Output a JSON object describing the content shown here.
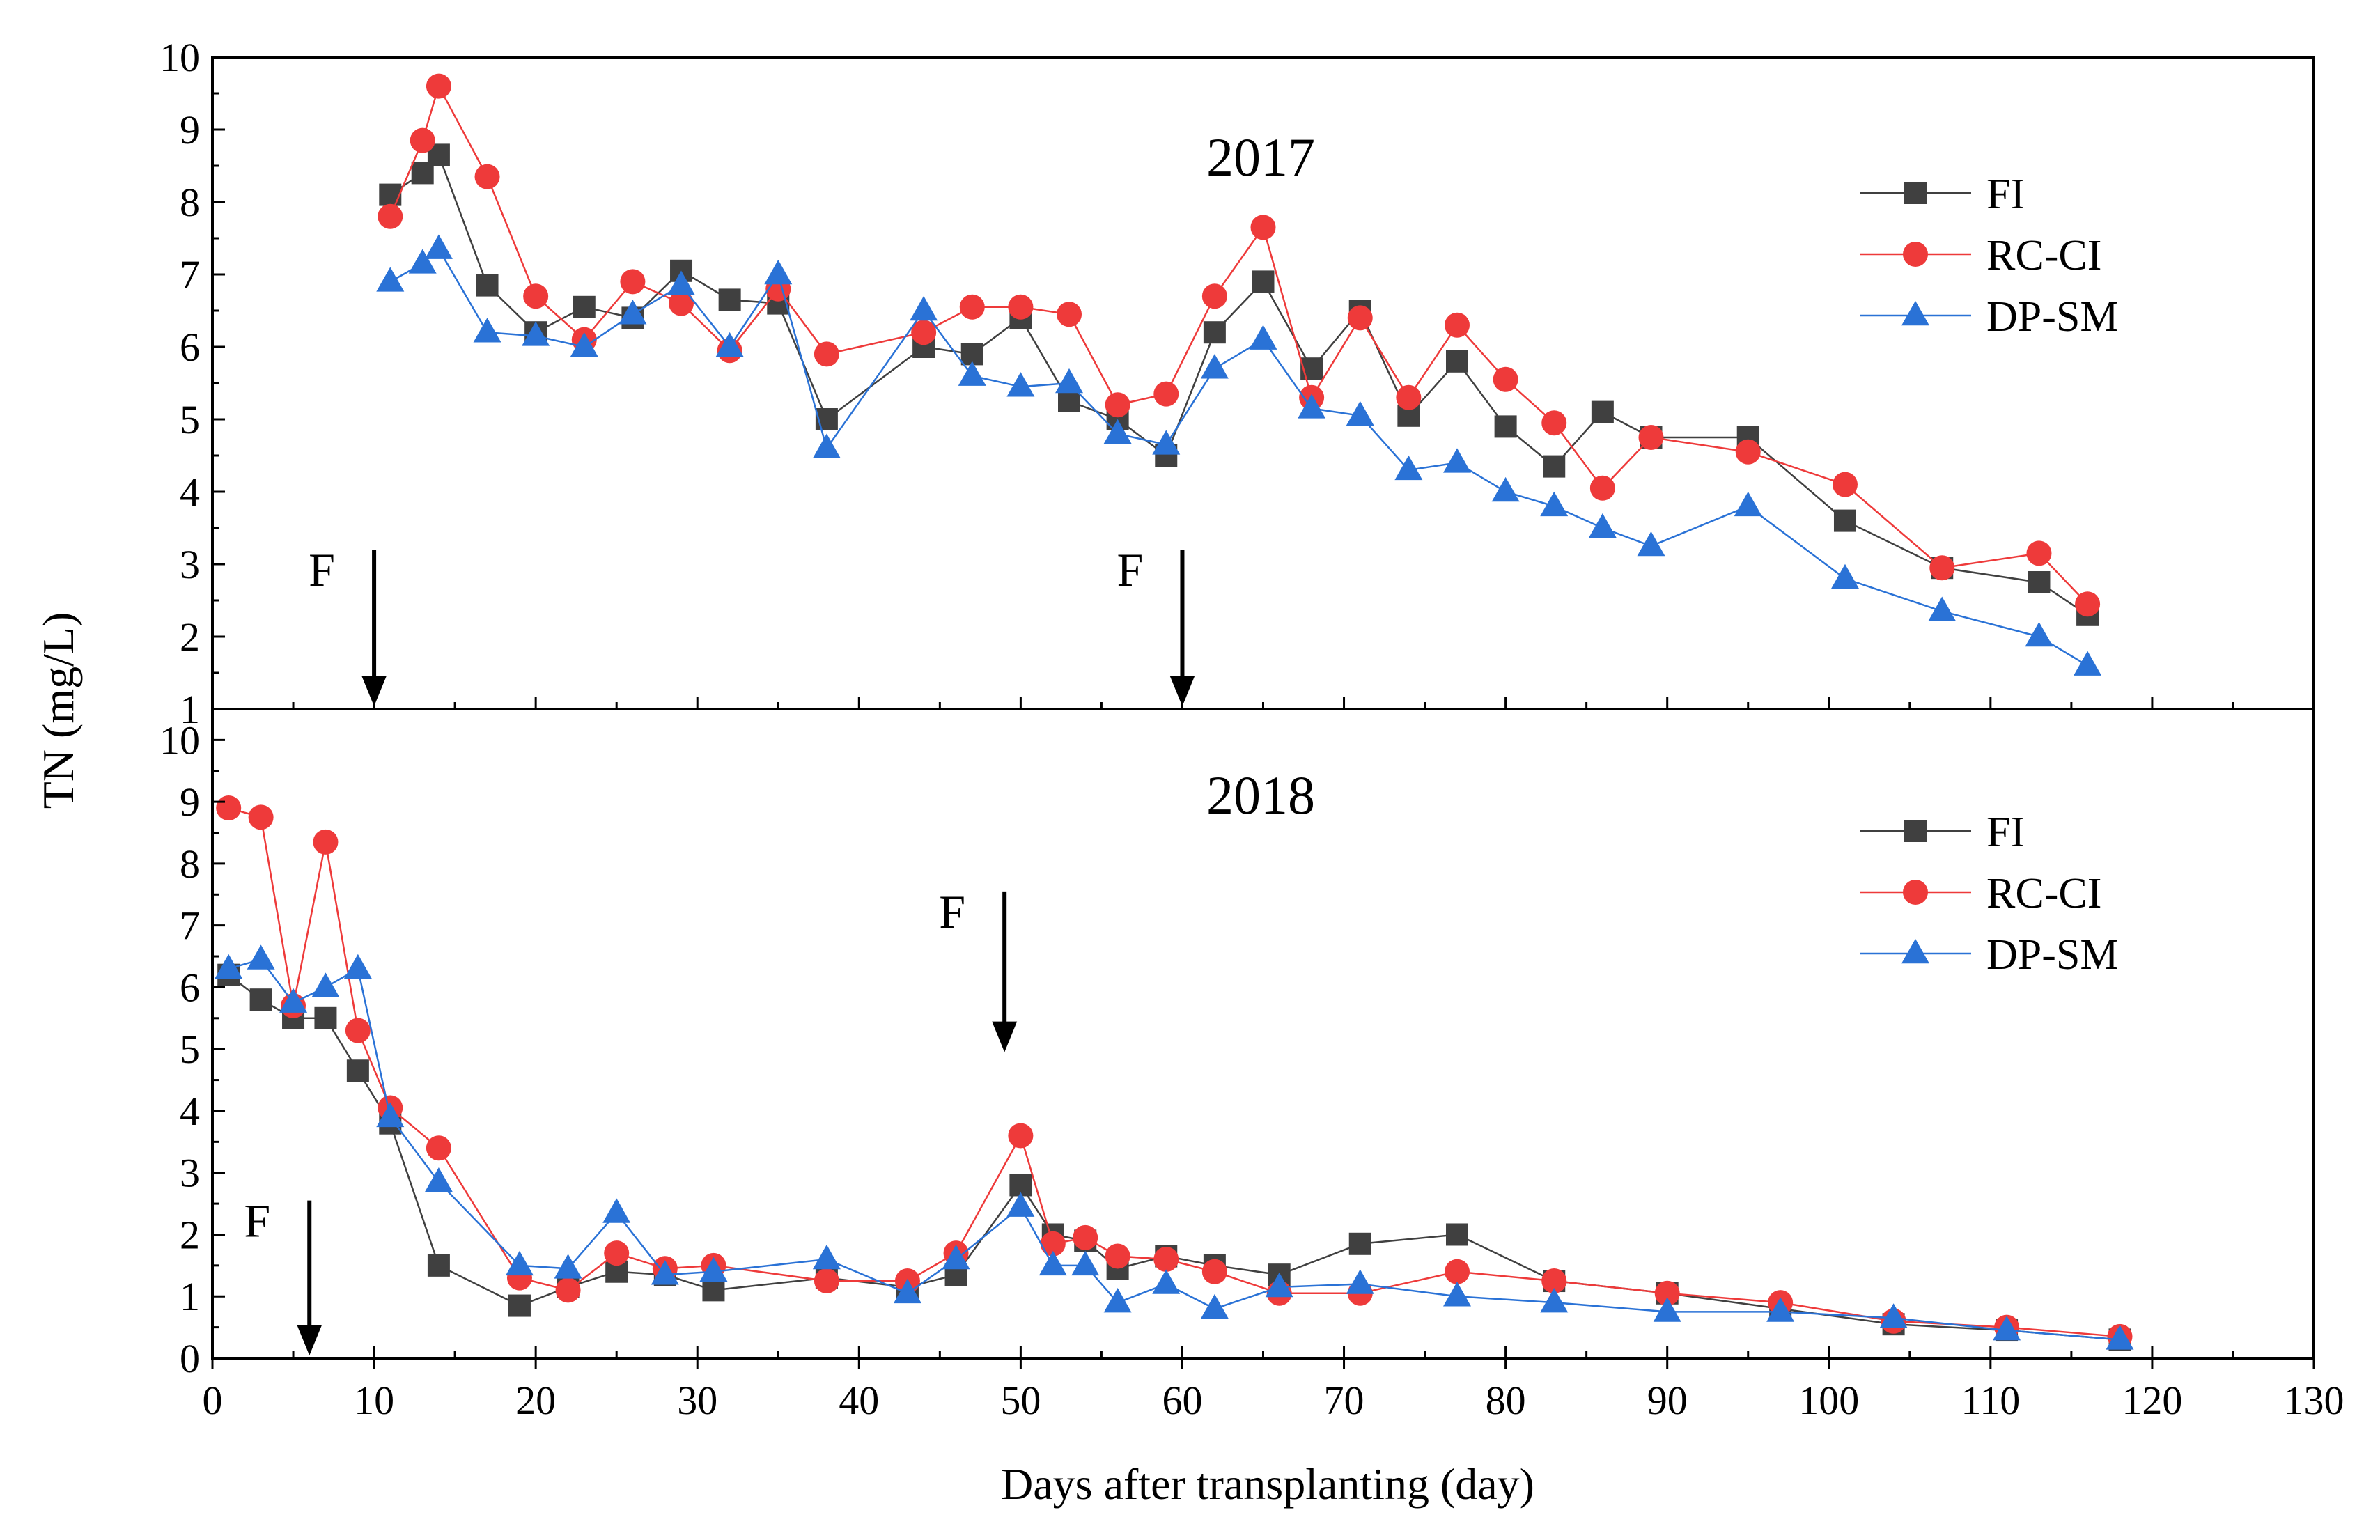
{
  "chart_data": {
    "type": "line",
    "x_axis": {
      "label": "Days after transplanting (day)",
      "range": [
        0,
        130
      ],
      "ticks": [
        0,
        10,
        20,
        30,
        40,
        50,
        60,
        70,
        80,
        90,
        100,
        110,
        120,
        130
      ]
    },
    "y_axis_label": "TN (mg/L)",
    "series_colors": {
      "FI": "#404040",
      "RC-CI": "#ee3a3a",
      "DP-SM": "#2a72d6"
    },
    "panels": [
      {
        "title": "2017",
        "ylim": [
          1,
          10
        ],
        "yticks": [
          1,
          2,
          3,
          4,
          5,
          6,
          7,
          8,
          9,
          10
        ],
        "legend": [
          "FI",
          "RC-CI",
          "DP-SM"
        ],
        "legend_position": "top-right",
        "fertilization": [
          {
            "label": "F",
            "day": 10
          },
          {
            "label": "F",
            "day": 60
          }
        ],
        "series": [
          {
            "name": "FI",
            "marker": "square",
            "x": [
              11,
              13,
              14,
              17,
              20,
              23,
              26,
              29,
              32,
              35,
              38,
              44,
              47,
              50,
              53,
              56,
              59,
              62,
              65,
              68,
              71,
              74,
              77,
              80,
              83,
              86,
              89,
              95,
              101,
              107,
              113,
              116
            ],
            "y": [
              8.1,
              8.4,
              8.65,
              6.85,
              6.2,
              6.55,
              6.4,
              7.05,
              6.65,
              6.6,
              5.0,
              6.0,
              5.9,
              6.4,
              5.25,
              5.0,
              4.5,
              6.2,
              6.9,
              5.7,
              6.5,
              5.05,
              5.8,
              4.9,
              4.35,
              5.1,
              4.75,
              4.75,
              3.6,
              2.95,
              2.75,
              2.3
            ]
          },
          {
            "name": "RC-CI",
            "marker": "circle",
            "x": [
              11,
              13,
              14,
              17,
              20,
              23,
              26,
              29,
              32,
              35,
              38,
              44,
              47,
              50,
              53,
              56,
              59,
              62,
              65,
              68,
              71,
              74,
              77,
              80,
              83,
              86,
              89,
              95,
              101,
              107,
              113,
              116
            ],
            "y": [
              7.8,
              8.85,
              9.6,
              8.35,
              6.7,
              6.1,
              6.9,
              6.6,
              5.95,
              6.8,
              5.9,
              6.2,
              6.55,
              6.55,
              6.45,
              5.2,
              5.35,
              6.7,
              7.65,
              5.3,
              6.4,
              5.3,
              6.3,
              5.55,
              4.95,
              4.05,
              4.75,
              4.55,
              4.1,
              2.95,
              3.15,
              2.45
            ]
          },
          {
            "name": "DP-SM",
            "marker": "triangle",
            "x": [
              11,
              13,
              14,
              17,
              20,
              23,
              26,
              29,
              32,
              35,
              38,
              44,
              47,
              50,
              53,
              56,
              59,
              62,
              65,
              68,
              71,
              74,
              77,
              80,
              83,
              86,
              89,
              95,
              101,
              107,
              113,
              116
            ],
            "y": [
              6.9,
              7.15,
              7.35,
              6.2,
              6.15,
              6.0,
              6.45,
              6.85,
              6.0,
              7.0,
              4.6,
              6.5,
              5.6,
              5.45,
              5.5,
              4.8,
              4.65,
              5.7,
              6.1,
              5.15,
              5.05,
              4.3,
              4.4,
              4.0,
              3.8,
              3.5,
              3.25,
              3.8,
              2.8,
              2.35,
              2.0,
              1.6
            ]
          }
        ]
      },
      {
        "title": "2018",
        "ylim": [
          0,
          10.5
        ],
        "yticks": [
          0,
          1,
          2,
          3,
          4,
          5,
          6,
          7,
          8,
          9,
          10
        ],
        "legend": [
          "FI",
          "RC-CI",
          "DP-SM"
        ],
        "legend_position": "top-right",
        "fertilization": [
          {
            "label": "F",
            "day": 6
          },
          {
            "label": "F",
            "day": 49
          }
        ],
        "series": [
          {
            "name": "FI",
            "marker": "square",
            "x": [
              1,
              3,
              5,
              7,
              9,
              11,
              14,
              19,
              22,
              25,
              28,
              31,
              38,
              43,
              46,
              50,
              52,
              54,
              56,
              59,
              62,
              66,
              71,
              77,
              83,
              90,
              97,
              104,
              111,
              118
            ],
            "y": [
              6.2,
              5.8,
              5.5,
              5.5,
              4.65,
              3.8,
              1.5,
              0.85,
              1.15,
              1.4,
              1.35,
              1.1,
              1.3,
              1.15,
              1.35,
              2.8,
              2.0,
              1.9,
              1.45,
              1.65,
              1.5,
              1.35,
              1.85,
              2.0,
              1.25,
              1.05,
              0.8,
              0.55,
              0.45,
              0.3
            ]
          },
          {
            "name": "RC-CI",
            "marker": "circle",
            "x": [
              1,
              3,
              5,
              7,
              9,
              11,
              14,
              19,
              22,
              25,
              28,
              31,
              38,
              43,
              46,
              50,
              52,
              54,
              56,
              59,
              62,
              66,
              71,
              77,
              83,
              90,
              97,
              104,
              111,
              118
            ],
            "y": [
              8.9,
              8.75,
              5.7,
              8.35,
              5.3,
              4.05,
              3.4,
              1.3,
              1.1,
              1.7,
              1.45,
              1.5,
              1.25,
              1.25,
              1.7,
              3.6,
              1.85,
              1.95,
              1.65,
              1.6,
              1.4,
              1.05,
              1.05,
              1.4,
              1.25,
              1.05,
              0.9,
              0.6,
              0.5,
              0.35
            ]
          },
          {
            "name": "DP-SM",
            "marker": "triangle",
            "x": [
              1,
              3,
              5,
              7,
              9,
              11,
              14,
              19,
              22,
              25,
              28,
              31,
              38,
              43,
              46,
              50,
              52,
              54,
              56,
              59,
              62,
              66,
              71,
              77,
              83,
              90,
              97,
              104,
              111,
              118
            ],
            "y": [
              6.3,
              6.45,
              5.75,
              6.0,
              6.3,
              3.9,
              2.85,
              1.5,
              1.45,
              2.35,
              1.35,
              1.4,
              1.6,
              1.05,
              1.6,
              2.45,
              1.5,
              1.5,
              0.9,
              1.2,
              0.8,
              1.15,
              1.2,
              1.0,
              0.9,
              0.75,
              0.75,
              0.65,
              0.45,
              0.3
            ]
          }
        ]
      }
    ]
  }
}
